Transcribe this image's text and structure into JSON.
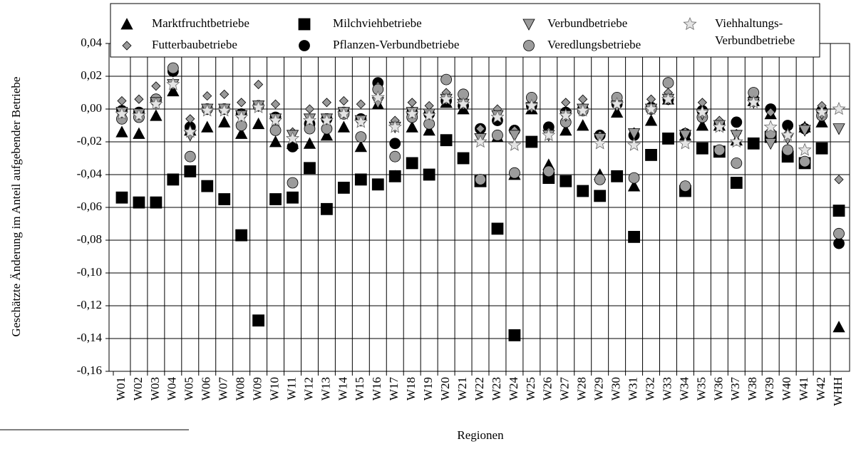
{
  "chart_data": {
    "type": "scatter",
    "y_label": "Geschätzte Änderung im Anteil aufgebender Betriebe",
    "x_label": "Regionen",
    "categories": [
      "W01",
      "W02",
      "W03",
      "W04",
      "W05",
      "W06",
      "W07",
      "W08",
      "W09",
      "W10",
      "W11",
      "W12",
      "W13",
      "W14",
      "W15",
      "W16",
      "W17",
      "W18",
      "W19",
      "W20",
      "W21",
      "W22",
      "W23",
      "W24",
      "W25",
      "W26",
      "W27",
      "W28",
      "W29",
      "W30",
      "W31",
      "W32",
      "W33",
      "W34",
      "W35",
      "W36",
      "W37",
      "W38",
      "W39",
      "W40",
      "W41",
      "W42",
      "WHH"
    ],
    "ylim": [
      -0.16,
      0.04
    ],
    "yticks": [
      {
        "value": 0.04,
        "label": "0,04"
      },
      {
        "value": 0.02,
        "label": "0,02"
      },
      {
        "value": 0,
        "label": "0,00"
      },
      {
        "value": -0.02,
        "label": "-0,02"
      },
      {
        "value": -0.04,
        "label": "-0,04"
      },
      {
        "value": -0.06,
        "label": "-0,06"
      },
      {
        "value": -0.08,
        "label": "-0,08"
      },
      {
        "value": -0.1,
        "label": "-0,10"
      },
      {
        "value": -0.12,
        "label": "-0,12"
      },
      {
        "value": -0.14,
        "label": "-0,14"
      },
      {
        "value": -0.16,
        "label": "-0,16"
      }
    ],
    "grid": true,
    "series": [
      {
        "name": "Marktfruchtbetriebe",
        "marker": "triangle",
        "color": "#000000",
        "values": [
          -0.014,
          -0.015,
          -0.004,
          0.011,
          -0.013,
          -0.011,
          -0.008,
          -0.015,
          -0.009,
          -0.02,
          -0.021,
          -0.021,
          -0.016,
          -0.011,
          -0.023,
          0.003,
          -0.041,
          -0.011,
          -0.013,
          0.004,
          0.0,
          -0.044,
          -0.017,
          -0.04,
          0.0,
          -0.034,
          -0.013,
          -0.01,
          -0.04,
          -0.002,
          -0.047,
          -0.007,
          0.006,
          -0.016,
          -0.01,
          -0.01,
          -0.019,
          0.005,
          -0.003,
          -0.026,
          -0.011,
          -0.008,
          -0.133
        ]
      },
      {
        "name": "Milchviehbetriebe",
        "marker": "square",
        "color": "#000000",
        "values": [
          -0.054,
          -0.057,
          -0.057,
          -0.043,
          -0.038,
          -0.047,
          -0.055,
          -0.077,
          -0.129,
          -0.055,
          -0.054,
          -0.036,
          -0.061,
          -0.048,
          -0.043,
          -0.046,
          -0.041,
          -0.033,
          -0.04,
          -0.019,
          -0.03,
          -0.044,
          -0.073,
          -0.138,
          -0.02,
          -0.042,
          -0.044,
          -0.05,
          -0.053,
          -0.041,
          -0.078,
          -0.028,
          -0.018,
          -0.05,
          -0.024,
          -0.026,
          -0.045,
          -0.021,
          -0.017,
          -0.029,
          -0.033,
          -0.024,
          -0.062
        ]
      },
      {
        "name": "Verbundbetriebe",
        "marker": "triangle-down",
        "color": "#9a9a9a",
        "values": [
          -0.002,
          -0.003,
          0.004,
          0.015,
          -0.016,
          0.0,
          0.0,
          -0.004,
          0.002,
          -0.006,
          -0.016,
          -0.006,
          -0.006,
          -0.002,
          -0.007,
          0.004,
          -0.011,
          -0.002,
          -0.003,
          0.006,
          0.003,
          -0.018,
          -0.004,
          -0.016,
          0.001,
          -0.016,
          -0.004,
          0.0,
          -0.018,
          0.002,
          -0.015,
          0.0,
          0.006,
          -0.016,
          -0.003,
          -0.01,
          -0.016,
          0.004,
          -0.021,
          -0.018,
          -0.013,
          -0.003,
          -0.012
        ]
      },
      {
        "name": "Viehhaltungs-Verbundbetriebe",
        "marker": "star",
        "color": "#e4e4e4",
        "values": [
          -0.003,
          -0.004,
          0.003,
          0.015,
          -0.014,
          -0.001,
          -0.001,
          -0.005,
          0.001,
          -0.007,
          -0.018,
          -0.007,
          -0.007,
          -0.003,
          -0.008,
          0.007,
          -0.011,
          -0.003,
          -0.004,
          0.006,
          0.003,
          -0.02,
          -0.005,
          -0.022,
          0.002,
          -0.016,
          -0.004,
          -0.001,
          -0.021,
          0.003,
          -0.022,
          0.0,
          0.006,
          -0.021,
          -0.002,
          -0.011,
          -0.02,
          0.004,
          -0.011,
          -0.016,
          -0.025,
          -0.002,
          0.0
        ]
      },
      {
        "name": "Futterbaubetriebe",
        "marker": "diamond",
        "color": "#999999",
        "values": [
          0.005,
          0.006,
          0.014,
          0.024,
          -0.006,
          0.008,
          0.009,
          0.004,
          0.015,
          0.003,
          -0.014,
          0.0,
          0.004,
          0.005,
          0.003,
          0.014,
          -0.007,
          0.004,
          0.002,
          0.01,
          0.006,
          -0.012,
          0.0,
          -0.013,
          0.006,
          -0.014,
          0.004,
          0.006,
          -0.016,
          0.004,
          -0.014,
          0.006,
          0.01,
          -0.014,
          0.004,
          -0.007,
          -0.015,
          0.008,
          -0.002,
          -0.015,
          -0.011,
          0.002,
          -0.043
        ]
      },
      {
        "name": "Pflanzen-Verbundbetriebe",
        "marker": "circle",
        "color": "#000000",
        "values": [
          -0.001,
          -0.002,
          0.005,
          0.023,
          -0.011,
          0.0,
          0.0,
          -0.003,
          0.002,
          -0.005,
          -0.023,
          -0.009,
          -0.006,
          -0.002,
          -0.006,
          0.016,
          -0.021,
          -0.002,
          -0.003,
          0.005,
          0.002,
          -0.012,
          -0.007,
          -0.013,
          0.002,
          -0.011,
          -0.002,
          0.0,
          -0.016,
          0.003,
          -0.016,
          0.001,
          0.006,
          -0.015,
          -0.001,
          -0.009,
          -0.008,
          0.006,
          0.0,
          -0.01,
          -0.012,
          -0.001,
          -0.082
        ]
      },
      {
        "name": "Veredlungsbetriebe",
        "marker": "circle",
        "color": "#9c9c9c",
        "values": [
          -0.006,
          -0.005,
          0.006,
          0.025,
          -0.029,
          0.0,
          0.0,
          -0.01,
          0.002,
          -0.013,
          -0.045,
          -0.012,
          -0.012,
          -0.003,
          -0.017,
          0.012,
          -0.029,
          -0.005,
          -0.009,
          0.018,
          0.009,
          -0.043,
          -0.016,
          -0.039,
          0.007,
          -0.038,
          -0.008,
          -0.001,
          -0.043,
          0.007,
          -0.042,
          0.0,
          0.016,
          -0.047,
          -0.005,
          -0.025,
          -0.033,
          0.01,
          -0.015,
          -0.025,
          -0.032,
          -0.004,
          -0.076
        ]
      }
    ]
  }
}
